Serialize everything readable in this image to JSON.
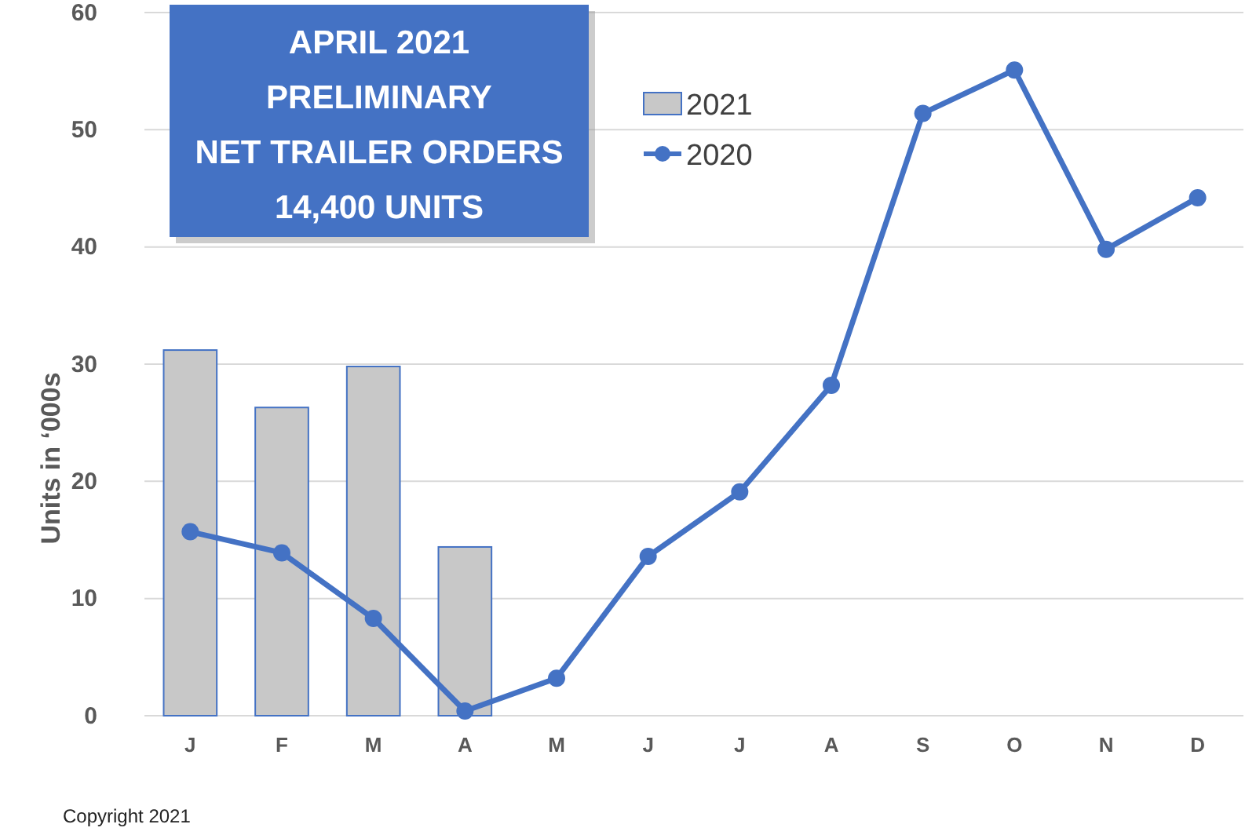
{
  "chart_data": {
    "type": "bar",
    "title": "APRIL 2021\nPRELIMINARY\nNET TRAILER ORDERS\n14,400 UNITS",
    "ylabel": "Units in ‘000s",
    "categories": [
      "J",
      "F",
      "M",
      "A",
      "M",
      "J",
      "J",
      "A",
      "S",
      "O",
      "N",
      "D"
    ],
    "series": [
      {
        "name": "2021",
        "color": "#c8c8c8",
        "values": [
          31.2,
          26.3,
          29.8,
          14.4,
          null,
          null,
          null,
          null,
          null,
          null,
          null,
          null
        ]
      },
      {
        "name": "2020",
        "type": "line",
        "color": "#4472c4",
        "marker": "circle",
        "values": [
          15.7,
          13.9,
          8.3,
          0.4,
          3.2,
          13.6,
          19.1,
          28.2,
          51.4,
          55.1,
          39.8,
          44.2
        ]
      }
    ],
    "ylim": [
      0,
      60
    ],
    "yticks": [
      0,
      10,
      20,
      30,
      40,
      50,
      60
    ],
    "grid": "y",
    "legend": "top",
    "annotations": [
      "Copyright 2021"
    ]
  }
}
